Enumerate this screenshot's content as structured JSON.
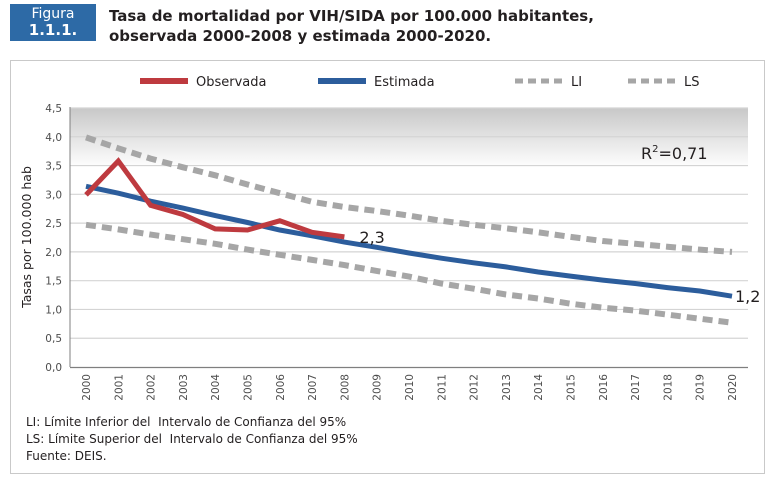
{
  "figure": {
    "label_word": "Figura",
    "label_number": "1.1.1.",
    "title_line1": "Tasa de mortalidad por VIH/SIDA por 100.000 habitantes,",
    "title_line2": "observada 2000-2008 y estimada 2000-2020."
  },
  "colors": {
    "badge": "#2d6aa6",
    "observada": "#be3a3f",
    "estimada": "#2c5d9c",
    "intervals": "#a6a6a6",
    "grid": "#d4d4d4"
  },
  "notes": [
    "LI: Límite Inferior del  Intervalo de Confianza del 95%",
    "LS: Límite Superior del  Intervalo de Confianza del 95%",
    "Fuente: DEIS."
  ],
  "chart_data": {
    "type": "line",
    "title": "Tasa de mortalidad por VIH/SIDA por 100.000 habitantes, observada 2000-2008 y estimada 2000-2020.",
    "xlabel": "",
    "ylabel": "Tasas por 100.000 hab",
    "ylim": [
      0,
      4.5
    ],
    "y_ticks": [
      "0,0",
      "0,5",
      "1,0",
      "1,5",
      "2,0",
      "2,5",
      "3,0",
      "3,5",
      "4,0",
      "4,5"
    ],
    "y_tick_values": [
      0,
      0.5,
      1.0,
      1.5,
      2.0,
      2.5,
      3.0,
      3.5,
      4.0,
      4.5
    ],
    "grid": true,
    "legend_position": "top",
    "categories": [
      "2000",
      "2001",
      "2002",
      "2003",
      "2004",
      "2005",
      "2006",
      "2007",
      "2008",
      "2009",
      "2010",
      "2011",
      "2012",
      "2013",
      "2014",
      "2015",
      "2016",
      "2017",
      "2018",
      "2019",
      "2020"
    ],
    "series": [
      {
        "key": "observada",
        "name": "Observada",
        "style": "solid",
        "values": [
          2.99,
          3.58,
          2.81,
          2.65,
          2.4,
          2.38,
          2.54,
          2.34,
          2.26,
          null,
          null,
          null,
          null,
          null,
          null,
          null,
          null,
          null,
          null,
          null,
          null
        ],
        "end_label": "2,3"
      },
      {
        "key": "estimada",
        "name": "Estimada",
        "style": "solid",
        "values": [
          3.14,
          3.02,
          2.88,
          2.76,
          2.63,
          2.51,
          2.38,
          2.28,
          2.17,
          2.08,
          1.98,
          1.89,
          1.81,
          1.74,
          1.65,
          1.58,
          1.51,
          1.45,
          1.38,
          1.32,
          1.23
        ],
        "end_label": "1,2"
      },
      {
        "key": "li",
        "name": "LI",
        "style": "dashed",
        "values": [
          2.47,
          2.39,
          2.3,
          2.22,
          2.14,
          2.04,
          1.95,
          1.86,
          1.77,
          1.67,
          1.57,
          1.45,
          1.36,
          1.26,
          1.19,
          1.1,
          1.03,
          0.98,
          0.91,
          0.84,
          0.77
        ]
      },
      {
        "key": "ls",
        "name": "LS",
        "style": "dashed",
        "values": [
          3.99,
          3.8,
          3.62,
          3.47,
          3.33,
          3.17,
          3.02,
          2.87,
          2.78,
          2.71,
          2.63,
          2.54,
          2.47,
          2.41,
          2.34,
          2.26,
          2.19,
          2.14,
          2.09,
          2.04,
          2.0
        ]
      }
    ],
    "annotations": [
      {
        "text": "R²=0,71",
        "base": "R",
        "sup": "2",
        "rest": "=0,71",
        "position": "top-right"
      }
    ]
  }
}
